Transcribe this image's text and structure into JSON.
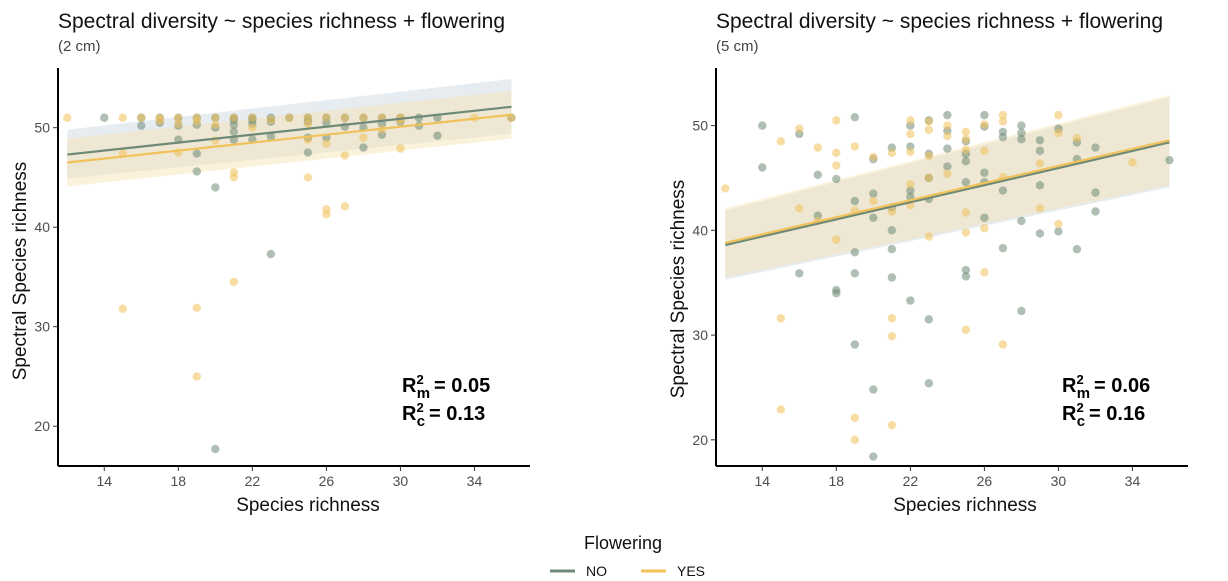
{
  "legend": {
    "title": "Flowering",
    "items": [
      {
        "label": "NO",
        "color": "#6e8a77"
      },
      {
        "label": "YES",
        "color": "#f1c15a"
      }
    ]
  },
  "chart_data": [
    {
      "type": "scatter",
      "title": "Spectral diversity ~ species richness + flowering",
      "subtitle": "(2 cm)",
      "xlabel": "Species richness",
      "ylabel": "Spectral Species richness",
      "xlim": [
        11.5,
        37
      ],
      "ylim": [
        16,
        56
      ],
      "xticks": [
        14,
        18,
        22,
        26,
        30,
        34
      ],
      "yticks": [
        20,
        30,
        40,
        50
      ],
      "r2": {
        "marginal_label": "R",
        "marginal_sub": "m",
        "marginal_value": "= 0.05",
        "conditional_label": "R",
        "conditional_sub": "c",
        "conditional_value": "= 0.13",
        "sup": "2"
      },
      "series": [
        {
          "name": "NO",
          "points": [
            [
              14,
              51
            ],
            [
              16,
              51
            ],
            [
              16,
              50.2
            ],
            [
              17,
              51
            ],
            [
              17,
              50.5
            ],
            [
              18,
              51
            ],
            [
              18,
              48.8
            ],
            [
              18,
              50.2
            ],
            [
              19,
              51
            ],
            [
              19,
              50.3
            ],
            [
              19,
              47.4
            ],
            [
              19,
              45.6
            ],
            [
              20,
              51
            ],
            [
              20,
              50
            ],
            [
              20,
              44
            ],
            [
              20,
              17.7
            ],
            [
              21,
              51
            ],
            [
              21,
              50.8
            ],
            [
              21,
              50.3
            ],
            [
              21,
              49.6
            ],
            [
              21,
              48.8
            ],
            [
              22,
              51
            ],
            [
              22,
              50.8
            ],
            [
              22,
              50.4
            ],
            [
              22,
              48.8
            ],
            [
              23,
              51
            ],
            [
              23,
              50.6
            ],
            [
              23,
              49.1
            ],
            [
              23,
              37.3
            ],
            [
              24,
              51
            ],
            [
              25,
              51
            ],
            [
              25,
              50.6
            ],
            [
              25,
              49
            ],
            [
              25,
              47.5
            ],
            [
              26,
              51
            ],
            [
              26,
              50.5
            ],
            [
              26,
              49
            ],
            [
              27,
              51
            ],
            [
              27,
              50.1
            ],
            [
              28,
              51
            ],
            [
              28,
              50
            ],
            [
              28,
              48
            ],
            [
              29,
              51
            ],
            [
              29,
              50.4
            ],
            [
              29,
              49.3
            ],
            [
              30,
              51
            ],
            [
              30,
              50.6
            ],
            [
              31,
              51
            ],
            [
              31,
              50.2
            ],
            [
              32,
              51
            ],
            [
              32,
              49.2
            ],
            [
              36,
              51
            ]
          ],
          "trend": {
            "x": [
              12,
              36
            ],
            "y": [
              47.3,
              52.1
            ]
          },
          "ci": {
            "lower": [
              44.9,
              49.4
            ],
            "upper": [
              49.8,
              54.9
            ]
          }
        },
        {
          "name": "YES",
          "points": [
            [
              12,
              51
            ],
            [
              15,
              51
            ],
            [
              15,
              47.4
            ],
            [
              15,
              31.8
            ],
            [
              16,
              51
            ],
            [
              17,
              51
            ],
            [
              17,
              50.7
            ],
            [
              18,
              51
            ],
            [
              18,
              50.4
            ],
            [
              18,
              47.5
            ],
            [
              19,
              51
            ],
            [
              19,
              50.6
            ],
            [
              19,
              31.9
            ],
            [
              19,
              25
            ],
            [
              20,
              51
            ],
            [
              20,
              50.3
            ],
            [
              20,
              48.7
            ],
            [
              21,
              51
            ],
            [
              21,
              45.5
            ],
            [
              21,
              45
            ],
            [
              21,
              34.5
            ],
            [
              22,
              51
            ],
            [
              22,
              50
            ],
            [
              23,
              50.8
            ],
            [
              24,
              51
            ],
            [
              25,
              51
            ],
            [
              25,
              50.4
            ],
            [
              25,
              48.8
            ],
            [
              25,
              45
            ],
            [
              26,
              51
            ],
            [
              26,
              48.4
            ],
            [
              26,
              41.8
            ],
            [
              26,
              41.3
            ],
            [
              27,
              51
            ],
            [
              27,
              47.2
            ],
            [
              27,
              42.1
            ],
            [
              28,
              51
            ],
            [
              28,
              49
            ],
            [
              29,
              51
            ],
            [
              29,
              49.8
            ],
            [
              30,
              51
            ],
            [
              30,
              50.7
            ],
            [
              30,
              47.9
            ],
            [
              34,
              51
            ],
            [
              36,
              51
            ]
          ],
          "trend": {
            "x": [
              12,
              36
            ],
            "y": [
              46.5,
              51.3
            ]
          },
          "ci": {
            "lower": [
              44.1,
              48.9
            ],
            "upper": [
              48.9,
              53.7
            ]
          }
        }
      ]
    },
    {
      "type": "scatter",
      "title": "Spectral diversity ~ species richness + flowering",
      "subtitle": "(5 cm)",
      "xlabel": "Species richness",
      "ylabel": "Spectral Species richness",
      "xlim": [
        11.5,
        37
      ],
      "ylim": [
        17.5,
        55.5
      ],
      "xticks": [
        14,
        18,
        22,
        26,
        30,
        34
      ],
      "yticks": [
        20,
        30,
        40,
        50
      ],
      "r2": {
        "marginal_label": "R",
        "marginal_sub": "m",
        "marginal_value": "= 0.06",
        "conditional_label": "R",
        "conditional_sub": "c",
        "conditional_value": "= 0.16",
        "sup": "2"
      },
      "series": [
        {
          "name": "NO",
          "points": [
            [
              14,
              50
            ],
            [
              14,
              46
            ],
            [
              16,
              49.2
            ],
            [
              16,
              35.9
            ],
            [
              17,
              45.3
            ],
            [
              17,
              41.4
            ],
            [
              18,
              34.3
            ],
            [
              18,
              34
            ],
            [
              18,
              44.9
            ],
            [
              19,
              50.8
            ],
            [
              19,
              42.8
            ],
            [
              19,
              37.9
            ],
            [
              19,
              35.9
            ],
            [
              19,
              29.1
            ],
            [
              20,
              46.8
            ],
            [
              20,
              43.5
            ],
            [
              20,
              41.2
            ],
            [
              20,
              24.8
            ],
            [
              20,
              18.4
            ],
            [
              21,
              47.9
            ],
            [
              21,
              42.2
            ],
            [
              21,
              40
            ],
            [
              21,
              38.2
            ],
            [
              21,
              35.5
            ],
            [
              22,
              50
            ],
            [
              22,
              48
            ],
            [
              22,
              43.8
            ],
            [
              22,
              43.2
            ],
            [
              22,
              33.3
            ],
            [
              23,
              50.5
            ],
            [
              23,
              47.3
            ],
            [
              23,
              45
            ],
            [
              23,
              43
            ],
            [
              23,
              31.5
            ],
            [
              23,
              25.4
            ],
            [
              24,
              51
            ],
            [
              24,
              49.5
            ],
            [
              24,
              47.8
            ],
            [
              24,
              46.1
            ],
            [
              25,
              48.5
            ],
            [
              25,
              47.3
            ],
            [
              25,
              46.6
            ],
            [
              25,
              44.6
            ],
            [
              25,
              36.2
            ],
            [
              25,
              35.6
            ],
            [
              26,
              51
            ],
            [
              26,
              49.9
            ],
            [
              26,
              45.5
            ],
            [
              26,
              44.6
            ],
            [
              26,
              41.2
            ],
            [
              27,
              49.4
            ],
            [
              27,
              48.9
            ],
            [
              27,
              43.8
            ],
            [
              27,
              38.3
            ],
            [
              28,
              50
            ],
            [
              28,
              49.3
            ],
            [
              28,
              48.7
            ],
            [
              28,
              40.9
            ],
            [
              28,
              32.3
            ],
            [
              29,
              48.6
            ],
            [
              29,
              47.6
            ],
            [
              29,
              44.3
            ],
            [
              29,
              39.7
            ],
            [
              30,
              49.7
            ],
            [
              30,
              39.9
            ],
            [
              31,
              48.4
            ],
            [
              31,
              46.8
            ],
            [
              31,
              38.2
            ],
            [
              32,
              47.9
            ],
            [
              32,
              43.6
            ],
            [
              32,
              41.8
            ],
            [
              36,
              46.7
            ]
          ],
          "trend": {
            "x": [
              12,
              36
            ],
            "y": [
              38.6,
              48.4
            ]
          },
          "ci": {
            "lower": [
              35.3,
              44.1
            ],
            "upper": [
              41.9,
              52.7
            ]
          }
        },
        {
          "name": "YES",
          "points": [
            [
              12,
              44
            ],
            [
              15,
              48.5
            ],
            [
              15,
              31.6
            ],
            [
              15,
              22.9
            ],
            [
              16,
              49.7
            ],
            [
              16,
              42.1
            ],
            [
              17,
              47.9
            ],
            [
              17,
              40.9
            ],
            [
              18,
              50.5
            ],
            [
              18,
              47.4
            ],
            [
              18,
              46.2
            ],
            [
              18,
              39.1
            ],
            [
              19,
              48
            ],
            [
              19,
              41.9
            ],
            [
              19,
              22.1
            ],
            [
              19,
              20
            ],
            [
              20,
              47
            ],
            [
              20,
              42.8
            ],
            [
              21,
              47.4
            ],
            [
              21,
              41.8
            ],
            [
              21,
              31.6
            ],
            [
              21,
              29.9
            ],
            [
              21,
              21.4
            ],
            [
              22,
              50.5
            ],
            [
              22,
              49.2
            ],
            [
              22,
              47.5
            ],
            [
              22,
              44.4
            ],
            [
              22,
              42.4
            ],
            [
              23,
              50.4
            ],
            [
              23,
              49.6
            ],
            [
              23,
              47.1
            ],
            [
              23,
              45
            ],
            [
              23,
              39.4
            ],
            [
              24,
              50
            ],
            [
              24,
              49
            ],
            [
              24,
              45.4
            ],
            [
              25,
              49.4
            ],
            [
              25,
              48.7
            ],
            [
              25,
              47.7
            ],
            [
              25,
              41.7
            ],
            [
              25,
              39.8
            ],
            [
              25,
              30.5
            ],
            [
              26,
              50.1
            ],
            [
              26,
              47.6
            ],
            [
              26,
              40.2
            ],
            [
              26,
              36
            ],
            [
              27,
              51
            ],
            [
              27,
              50.4
            ],
            [
              27,
              45.1
            ],
            [
              27,
              29.1
            ],
            [
              29,
              46.4
            ],
            [
              29,
              42.1
            ],
            [
              30,
              51
            ],
            [
              30,
              49.3
            ],
            [
              30,
              40.6
            ],
            [
              31,
              48.8
            ],
            [
              34,
              46.5
            ]
          ],
          "trend": {
            "x": [
              12,
              36
            ],
            "y": [
              38.8,
              48.6
            ]
          },
          "ci": {
            "lower": [
              35.5,
              44.3
            ],
            "upper": [
              42.1,
              52.9
            ]
          }
        }
      ]
    }
  ]
}
